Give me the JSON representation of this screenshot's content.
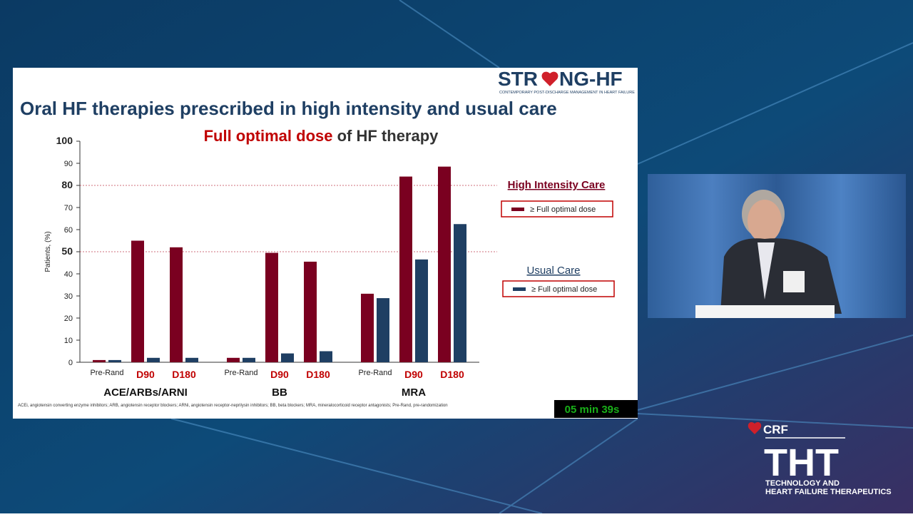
{
  "slide": {
    "logo_left": "STR",
    "logo_right": "NG-HF",
    "logo_tagline": "CONTEMPORARY POST-DISCHARGE MANAGEMENT IN HEART FAILURE",
    "title": "Oral HF therapies prescribed in high intensity and usual care",
    "footnote": "ACEi, angiotensin converting enzyme inhibitors; ARB, angiotensin receptor blockers; ARNi, angiotensin receptor-neprilysin inhibitors; BB, beta blockers; MRA, mineralocorticoid receptor antagonists; Pre-Rand, pre-randomization",
    "timer": "05 min 39s"
  },
  "branding": {
    "crf": "CRF",
    "tht": "THT",
    "line1": "TECHNOLOGY AND",
    "line2": "HEART FAILURE THERAPEUTICS"
  },
  "chart_data": {
    "type": "bar",
    "title_highlight": "Full optimal dose",
    "title_rest": "of HF therapy",
    "ylabel": "Patients, (%)",
    "categories": [
      "Pre-Rand",
      "D90",
      "D180",
      "Pre-Rand",
      "D90",
      "D180",
      "Pre-Rand",
      "D90",
      "D180"
    ],
    "groups": [
      "ACE/ARBs/ARNI",
      "BB",
      "MRA"
    ],
    "series": [
      {
        "name": "≥ Full optimal dose",
        "legend_title": "High Intensity Care",
        "color": "#7a0020",
        "values": [
          1,
          55,
          52,
          2,
          49.5,
          45.5,
          31,
          84,
          88.5
        ]
      },
      {
        "name": "≥ Full optimal dose",
        "legend_title": "Usual Care",
        "color": "#1f3f63",
        "values": [
          1,
          2,
          2,
          2,
          4,
          5,
          29,
          46.5,
          62.5
        ]
      }
    ],
    "ylim": [
      0,
      100
    ],
    "yticks": [
      0,
      10,
      20,
      30,
      40,
      50,
      60,
      70,
      80,
      90,
      100
    ],
    "reference_lines": [
      50,
      80
    ]
  }
}
